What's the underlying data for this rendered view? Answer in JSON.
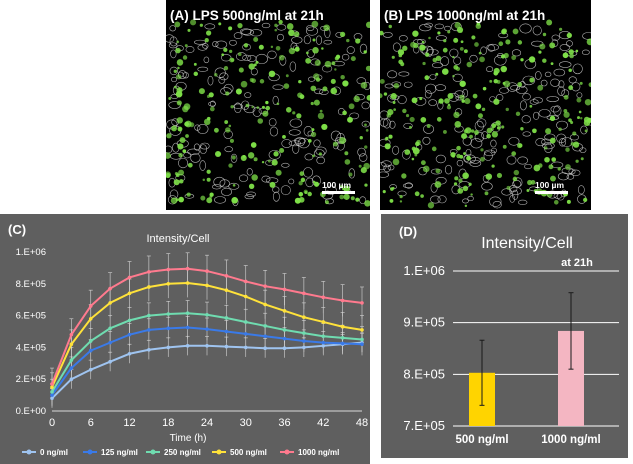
{
  "panels": {
    "a": {
      "title": "(A) LPS 500ng/ml at 21h",
      "scale": "100 µm"
    },
    "b": {
      "title": "(B) LPS 1000ng/ml at 21h",
      "scale": "100 µm"
    },
    "c": {
      "label": "(C)"
    },
    "d": {
      "label": "(D)"
    }
  },
  "colors": {
    "panel_bg": "#5f5f5f",
    "cell_green": "#7ee048",
    "cell_outline": "#cfcfcf",
    "s0": "#9fc4f0",
    "s125": "#3a7ae8",
    "s250": "#6fdcb0",
    "s500": "#ffe23a",
    "s1000": "#ff7a8e",
    "bar500": "#ffd400",
    "bar1000": "#f4b6c2"
  },
  "chart_data": [
    {
      "type": "line",
      "title": "Intensity/Cell",
      "xlabel": "Time (h)",
      "ylabel": "",
      "xlim": [
        0,
        48
      ],
      "ylim": [
        0,
        1000000
      ],
      "xticks": [
        "0",
        "6",
        "12",
        "18",
        "24",
        "30",
        "36",
        "42",
        "48"
      ],
      "yticks": [
        "0.E+00",
        "2.E+05",
        "4.E+05",
        "6.E+05",
        "8.E+05",
        "1.E+06"
      ],
      "x": [
        0,
        3,
        6,
        9,
        12,
        15,
        18,
        21,
        24,
        27,
        30,
        33,
        36,
        39,
        42,
        45,
        48
      ],
      "series": [
        {
          "name": "0 ng/ml",
          "color": "#9fc4f0",
          "values": [
            80000,
            200000,
            260000,
            310000,
            360000,
            385000,
            400000,
            410000,
            410000,
            405000,
            400000,
            395000,
            395000,
            400000,
            410000,
            420000,
            430000
          ],
          "error": 60000
        },
        {
          "name": "125 ng/ml",
          "color": "#3a7ae8",
          "values": [
            100000,
            270000,
            380000,
            430000,
            480000,
            510000,
            520000,
            525000,
            515000,
            500000,
            485000,
            470000,
            455000,
            440000,
            430000,
            425000,
            420000
          ],
          "error": 70000
        },
        {
          "name": "250 ng/ml",
          "color": "#6fdcb0",
          "values": [
            120000,
            320000,
            440000,
            520000,
            570000,
            600000,
            610000,
            615000,
            605000,
            585000,
            560000,
            535000,
            510000,
            490000,
            470000,
            460000,
            450000
          ],
          "error": 80000
        },
        {
          "name": "500 ng/ml",
          "color": "#ffe23a",
          "values": [
            150000,
            420000,
            580000,
            680000,
            740000,
            780000,
            800000,
            805000,
            790000,
            760000,
            720000,
            670000,
            630000,
            590000,
            560000,
            530000,
            510000
          ],
          "error": 90000
        },
        {
          "name": "1000 ng/ml",
          "color": "#ff7a8e",
          "values": [
            170000,
            480000,
            660000,
            770000,
            840000,
            875000,
            890000,
            895000,
            880000,
            850000,
            815000,
            785000,
            765000,
            740000,
            715000,
            695000,
            680000
          ],
          "error": 100000
        }
      ],
      "legend": "bottom",
      "grid": false
    },
    {
      "type": "bar",
      "title": "Intensity/Cell",
      "subtitle": "at 21h",
      "categories": [
        "500 ng/ml",
        "1000 ng/ml"
      ],
      "values": [
        803000,
        884000
      ],
      "errors": [
        63000,
        74000
      ],
      "colors": [
        "#ffd400",
        "#f4b6c2"
      ],
      "yticks": [
        "7.E+05",
        "8.E+05",
        "9.E+05",
        "1.E+06"
      ],
      "ylim": [
        700000,
        1000000
      ],
      "xlabel": "",
      "ylabel": "",
      "grid": true
    }
  ]
}
